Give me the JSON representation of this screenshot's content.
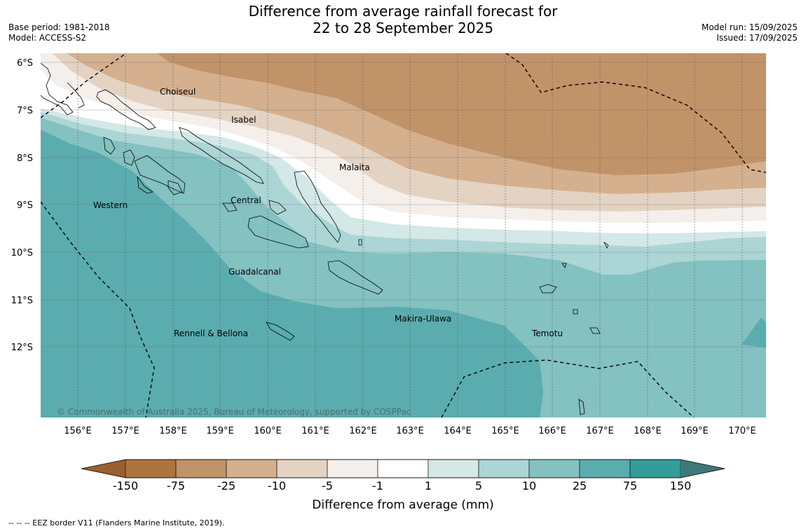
{
  "header": {
    "title_line1": "Difference from average rainfall forecast for",
    "title_line2": "22 to 28 September 2025",
    "base_period": "Base period: 1981-2018",
    "model": "Model: ACCESS-S2",
    "model_run": "Model run: 15/09/2025",
    "issued": "Issued: 17/09/2025"
  },
  "map": {
    "lat_labels": [
      "6°S",
      "7°S",
      "8°S",
      "9°S",
      "10°S",
      "11°S",
      "12°S"
    ],
    "lon_labels": [
      "156°E",
      "157°E",
      "158°E",
      "159°E",
      "160°E",
      "161°E",
      "162°E",
      "163°E",
      "164°E",
      "165°E",
      "166°E",
      "167°E",
      "168°E",
      "169°E",
      "170°E"
    ],
    "places": [
      "Choiseul",
      "Isabel",
      "Malaita",
      "Western",
      "Central",
      "Guadalcanal",
      "Makira-Ulawa",
      "Rennell & Bellona",
      "Temotu"
    ],
    "copyright": "© Commonwealth of Australia 2025, Bureau of Meteorology, supported by COSPPac"
  },
  "colorbar": {
    "ticks": [
      "-150",
      "-75",
      "-25",
      "-10",
      "-5",
      "-1",
      "1",
      "5",
      "10",
      "25",
      "75",
      "150"
    ],
    "colors": [
      "#ad743f",
      "#c19369",
      "#d4b08f",
      "#e4d3c2",
      "#f4efea",
      "#ffffff",
      "#d3e8e7",
      "#acd5d5",
      "#84c1c1",
      "#5bacaf",
      "#359c9c"
    ],
    "under_color": "#9a5f2e",
    "over_color": "#3f7878",
    "label": "Difference from average (mm)"
  },
  "footer": {
    "legend_text": "--  --  -- EEZ border V11 (Flanders Marine Institute, 2019)."
  }
}
